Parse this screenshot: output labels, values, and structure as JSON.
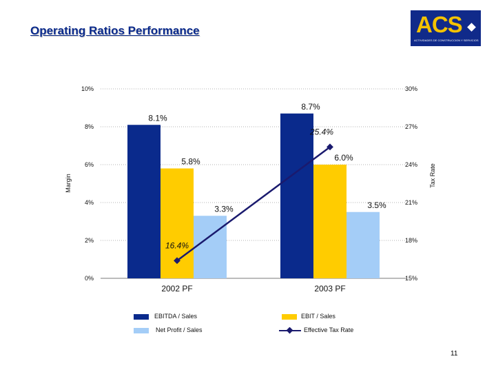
{
  "slide": {
    "title": "Operating Ratios Performance",
    "page_number": "11"
  },
  "logo": {
    "text": "ACS",
    "subtitle": "ACTIVIDADES DE CONSTRUCCION Y SERVICIOS",
    "bg_color": "#102a8a",
    "text_color": "#f4c200"
  },
  "chart_data": {
    "type": "bar",
    "categories": [
      "2002 PF",
      "2003 PF"
    ],
    "series": [
      {
        "name": "EBITDA / Sales",
        "values": [
          8.1,
          8.7
        ],
        "labels": [
          "8.1%",
          "8.7%"
        ],
        "color": "#0a2a8c"
      },
      {
        "name": "EBIT / Sales",
        "values": [
          5.8,
          6.0
        ],
        "labels": [
          "5.8%",
          "6.0%"
        ],
        "color": "#ffcc00"
      },
      {
        "name": "Net Profit / Sales",
        "values": [
          3.3,
          3.5
        ],
        "labels": [
          "3.3%",
          "3.5%"
        ],
        "color": "#a4cdf7"
      }
    ],
    "line_series": {
      "name": "Effective Tax Rate",
      "values": [
        16.4,
        25.4
      ],
      "labels": [
        "16.4%",
        "25.4%"
      ],
      "axis": "secondary",
      "color": "#1a1a6e"
    },
    "ylabel": "Margin",
    "y2label": "Tax Rate",
    "ylim": [
      0,
      10
    ],
    "y2lim": [
      15,
      30
    ],
    "yticks": [
      "0%",
      "2%",
      "4%",
      "6%",
      "8%",
      "10%"
    ],
    "y2ticks": [
      "15%",
      "18%",
      "21%",
      "24%",
      "27%",
      "30%"
    ],
    "grid": true,
    "legend_position": "bottom"
  }
}
